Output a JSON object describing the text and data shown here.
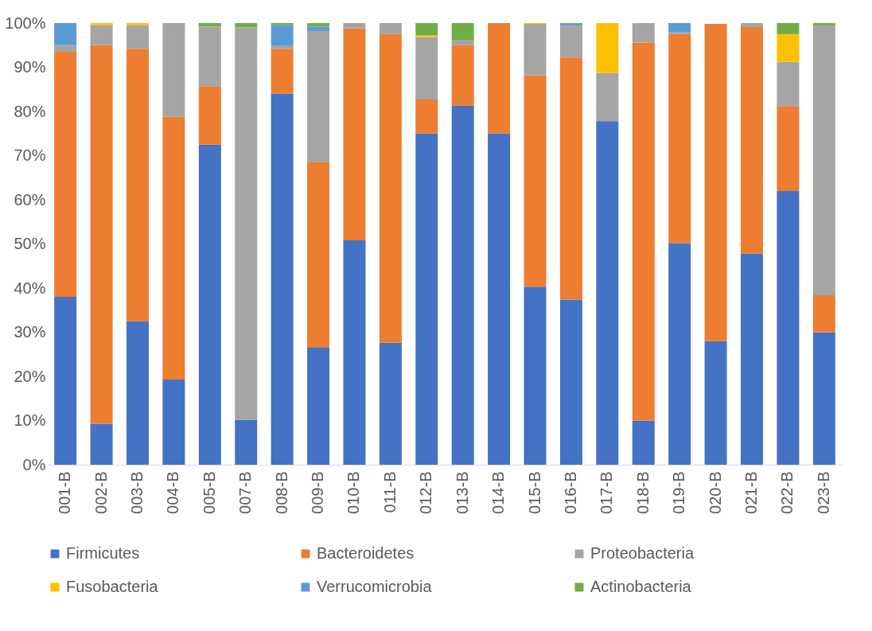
{
  "chart_data": {
    "type": "bar",
    "stacked": true,
    "categories": [
      "001-B",
      "002-B",
      "003-B",
      "004-B",
      "005-B",
      "007-B",
      "008-B",
      "009-B",
      "010-B",
      "011-B",
      "012-B",
      "013-B",
      "014-B",
      "015-B",
      "016-B",
      "017-B",
      "018-B",
      "019-B",
      "020-B",
      "021-B",
      "022-B",
      "023-B"
    ],
    "series": [
      {
        "name": "Firmicutes",
        "color": "#4472c4",
        "values": [
          38,
          9.3,
          32.5,
          19.3,
          72.5,
          10.2,
          84,
          26.6,
          50.8,
          27.6,
          75,
          81.3,
          75,
          40.3,
          37.4,
          77.8,
          10,
          50.2,
          28,
          47.8,
          62,
          30
        ]
      },
      {
        "name": "Bacteroidetes",
        "color": "#ed7d31",
        "values": [
          55.5,
          85.7,
          61.7,
          59.5,
          13.2,
          0,
          10.2,
          42,
          48,
          69.9,
          7.7,
          13.7,
          25,
          47.9,
          54.8,
          0,
          85.6,
          47.3,
          71.8,
          51.3,
          19.2,
          8.4
        ]
      },
      {
        "name": "Proteobacteria",
        "color": "#a5a5a5",
        "values": [
          1.5,
          4.5,
          5.3,
          21.2,
          13.5,
          88.8,
          0.6,
          29.6,
          1.2,
          2.5,
          14.1,
          1.2,
          0,
          11.6,
          7.2,
          10.9,
          4.4,
          0.4,
          null,
          0.9,
          10,
          61
        ]
      },
      {
        "name": "Fusobacteria",
        "color": "#ffc000",
        "values": [
          0,
          0.5,
          0.5,
          0,
          0,
          0,
          0,
          0,
          0,
          0,
          0.4,
          0,
          0,
          0.2,
          0,
          11.3,
          0,
          0,
          0,
          0,
          6.3,
          0
        ]
      },
      {
        "name": "Verrucomicrobia",
        "color": "#5b9bd5",
        "values": [
          5,
          0,
          0,
          0,
          0,
          0,
          4.7,
          1,
          0,
          0,
          0,
          0,
          0,
          0,
          0.4,
          0,
          0,
          2.1,
          0,
          0,
          0,
          0
        ]
      },
      {
        "name": "Actinobacteria",
        "color": "#70ad47",
        "values": [
          0,
          0,
          0,
          0,
          0.8,
          1,
          0.5,
          0.8,
          0,
          0,
          2.8,
          3.8,
          0,
          0,
          0.2,
          0,
          0,
          0,
          0,
          0,
          2.5,
          0.6
        ]
      }
    ],
    "ylim": [
      0,
      100
    ],
    "yticks": [
      {
        "value": 0,
        "label": "0%"
      },
      {
        "value": 10,
        "label": "10%"
      },
      {
        "value": 20,
        "label": "20%"
      },
      {
        "value": 30,
        "label": "30%"
      },
      {
        "value": 40,
        "label": "40%"
      },
      {
        "value": 50,
        "label": "50%"
      },
      {
        "value": 60,
        "label": "60%"
      },
      {
        "value": 70,
        "label": "70%"
      },
      {
        "value": 80,
        "label": "80%"
      },
      {
        "value": 90,
        "label": "90%"
      },
      {
        "value": 100,
        "label": "100%"
      }
    ],
    "grid": false,
    "legend": "bottom"
  }
}
